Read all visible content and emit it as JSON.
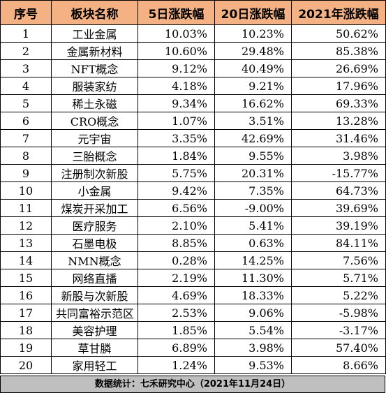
{
  "table": {
    "headers": [
      "序号",
      "板块名称",
      "5日涨跌幅",
      "20日涨跌幅",
      "2021年涨跌幅"
    ],
    "rows": [
      [
        "1",
        "工业金属",
        "10.03%",
        "10.23%",
        "50.62%"
      ],
      [
        "2",
        "金属新材料",
        "10.60%",
        "29.48%",
        "85.38%"
      ],
      [
        "3",
        "NFT概念",
        "9.12%",
        "40.49%",
        "26.69%"
      ],
      [
        "4",
        "服装家纺",
        "4.18%",
        "9.21%",
        "17.96%"
      ],
      [
        "5",
        "稀土永磁",
        "9.34%",
        "16.62%",
        "69.33%"
      ],
      [
        "6",
        "CRO概念",
        "1.07%",
        "3.51%",
        "13.28%"
      ],
      [
        "7",
        "元宇宙",
        "3.35%",
        "42.69%",
        "31.46%"
      ],
      [
        "8",
        "三胎概念",
        "1.84%",
        "9.55%",
        "3.98%"
      ],
      [
        "9",
        "注册制次新股",
        "5.75%",
        "20.31%",
        "-15.77%"
      ],
      [
        "10",
        "小金属",
        "9.42%",
        "7.35%",
        "64.73%"
      ],
      [
        "11",
        "煤炭开采加工",
        "6.56%",
        "-9.00%",
        "39.69%"
      ],
      [
        "12",
        "医疗服务",
        "2.10%",
        "5.41%",
        "39.19%"
      ],
      [
        "13",
        "石墨电极",
        "8.85%",
        "0.63%",
        "84.11%"
      ],
      [
        "14",
        "NMN概念",
        "0.28%",
        "14.25%",
        "7.56%"
      ],
      [
        "15",
        "网络直播",
        "2.19%",
        "11.30%",
        "5.71%"
      ],
      [
        "16",
        "新股与次新股",
        "4.69%",
        "18.33%",
        "5.22%"
      ],
      [
        "17",
        "共同富裕示范区",
        "2.53%",
        "9.06%",
        "-5.98%"
      ],
      [
        "18",
        "美容护理",
        "1.85%",
        "5.54%",
        "-3.17%"
      ],
      [
        "19",
        "草甘膦",
        "6.89%",
        "3.98%",
        "57.40%"
      ],
      [
        "20",
        "家用轻工",
        "1.24%",
        "9.53%",
        "8.66%"
      ]
    ]
  },
  "footer": "数据统计：七禾研究中心（2021年11月24日）",
  "colors": {
    "header_bg": "#f4b183",
    "footer_bg": "#bfbfbf"
  }
}
